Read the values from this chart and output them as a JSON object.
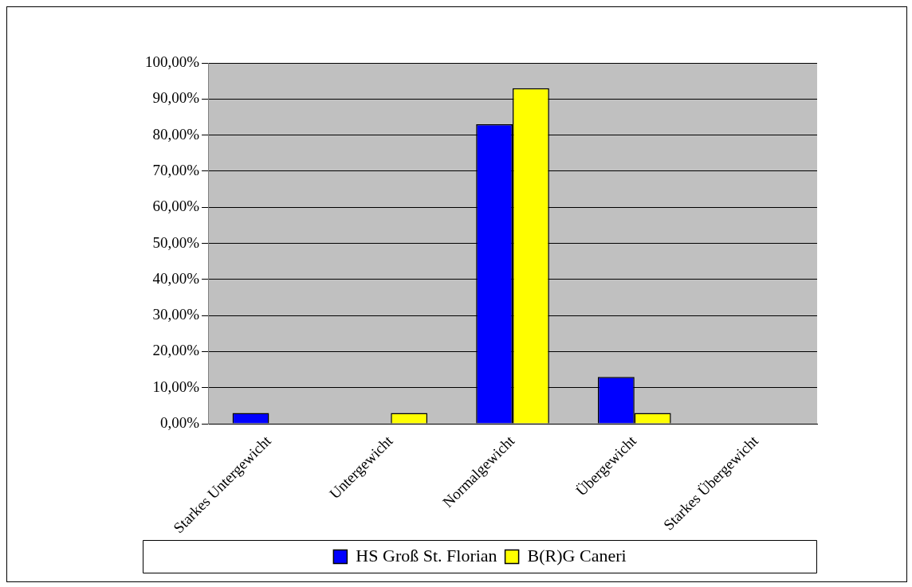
{
  "chart_data": {
    "type": "bar",
    "categories": [
      "Starkes Untergewicht",
      "Untergewicht",
      "Normalgewicht",
      "Übergewicht",
      "Starkes Übergewicht"
    ],
    "series": [
      {
        "name": "HS Groß St. Florian",
        "color": "#0000ff",
        "values": [
          3,
          0,
          83,
          13,
          0
        ]
      },
      {
        "name": "B(R)G Caneri",
        "color": "#ffff00",
        "values": [
          0,
          3,
          93,
          3,
          0
        ]
      }
    ],
    "ylim": [
      0,
      100
    ],
    "yticks": [
      {
        "value": 0,
        "label": "0,00%"
      },
      {
        "value": 10,
        "label": "10,00%"
      },
      {
        "value": 20,
        "label": "20,00%"
      },
      {
        "value": 30,
        "label": "30,00%"
      },
      {
        "value": 40,
        "label": "40,00%"
      },
      {
        "value": 50,
        "label": "50,00%"
      },
      {
        "value": 60,
        "label": "60,00%"
      },
      {
        "value": 70,
        "label": "70,00%"
      },
      {
        "value": 80,
        "label": "80,00%"
      },
      {
        "value": 90,
        "label": "90,00%"
      },
      {
        "value": 100,
        "label": "100,00%"
      }
    ],
    "grid": "y",
    "legend": "bottom"
  }
}
